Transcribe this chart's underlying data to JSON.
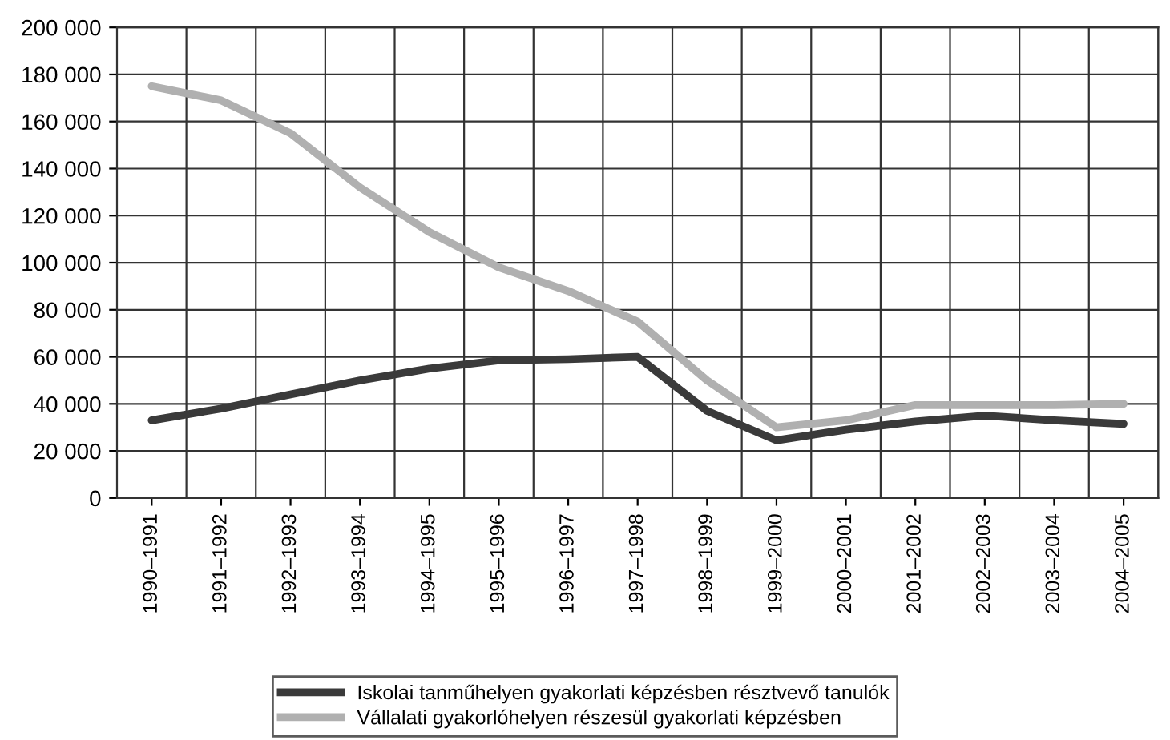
{
  "chart_data": {
    "type": "line",
    "categories": [
      "1990–1991",
      "1991–1992",
      "1992–1993",
      "1993–1994",
      "1994–1995",
      "1995–1996",
      "1996–1997",
      "1997–1998",
      "1998–1999",
      "1999–2000",
      "2000–2001",
      "2001–2002",
      "2002–2003",
      "2003–2004",
      "2004–2005"
    ],
    "series": [
      {
        "name": "Iskolai tanműhelyen gyakorlati képzésben résztvevő tanulók",
        "color": "#3a3a3a",
        "values": [
          33000,
          38000,
          44000,
          50000,
          55000,
          58500,
          59000,
          60000,
          37000,
          24500,
          29000,
          32500,
          35000,
          33000,
          31500
        ]
      },
      {
        "name": "Vállalati gyakorlóhelyen részesül gyakorlati képzésben",
        "color": "#b0b0b0",
        "values": [
          175000,
          169000,
          155000,
          132000,
          113000,
          98000,
          88000,
          75000,
          50000,
          30000,
          33000,
          39500,
          39500,
          39500,
          40000
        ]
      }
    ],
    "ylim": [
      0,
      200000
    ],
    "yticks": [
      {
        "value": 0,
        "label": "0"
      },
      {
        "value": 20000,
        "label": "20 000"
      },
      {
        "value": 40000,
        "label": "40 000"
      },
      {
        "value": 60000,
        "label": "60 000"
      },
      {
        "value": 80000,
        "label": "80 000"
      },
      {
        "value": 100000,
        "label": "100 000"
      },
      {
        "value": 120000,
        "label": "120 000"
      },
      {
        "value": 140000,
        "label": "140 000"
      },
      {
        "value": 160000,
        "label": "160 000"
      },
      {
        "value": 180000,
        "label": "180 000"
      },
      {
        "value": 200000,
        "label": "200 000"
      }
    ],
    "grid": true,
    "legend": "bottom",
    "marker": "none",
    "line_style": "solid"
  }
}
